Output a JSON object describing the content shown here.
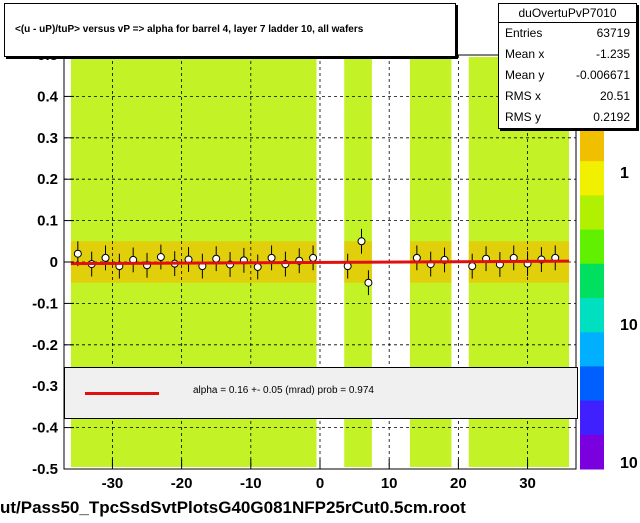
{
  "title": "<(u - uP)/tuP> versus   vP => alpha for barrel 4, layer 7 ladder 10, all wafers",
  "stats": {
    "name": "duOvertuPvP7010",
    "rows": [
      {
        "label": "Entries",
        "value": "63719"
      },
      {
        "label": "Mean x",
        "value": "-1.235"
      },
      {
        "label": "Mean y",
        "value": "-0.006671"
      },
      {
        "label": "RMS x",
        "value": "20.51"
      },
      {
        "label": "RMS y",
        "value": "0.2192"
      }
    ]
  },
  "fit": {
    "text": "alpha =    0.16 +-  0.05 (mrad) prob = 0.974",
    "color": "#e01010"
  },
  "filename": "ut/Pass50_TpcSsdSvtPlotsG40G081NFP25rCut0.5cm.root",
  "colorbar": {
    "labels": [
      "1",
      "10",
      "10"
    ],
    "colors": [
      "#7a00e0",
      "#4020ff",
      "#0060ff",
      "#00b0ff",
      "#00e0c0",
      "#00e060",
      "#60f000",
      "#b0f000",
      "#f0f000",
      "#f0c000"
    ]
  },
  "chart_data": {
    "type": "scatter",
    "xlim": [
      -37,
      37
    ],
    "ylim": [
      -0.5,
      0.5
    ],
    "x_ticks": [
      -30,
      -20,
      -10,
      0,
      10,
      20,
      30
    ],
    "y_ticks": [
      -0.5,
      -0.4,
      -0.3,
      -0.2,
      -0.1,
      0,
      0.1,
      0.2,
      0.3,
      0.4,
      0.5
    ],
    "y_tick_labels": [
      "-0.5",
      "-0.4",
      "-0.3",
      "-0.2",
      "-0.1",
      "0",
      "0.1",
      "0.2",
      "0.3",
      "0.4",
      "0.5"
    ],
    "grid": true,
    "occupied_x_bands": [
      [
        -36,
        -0.5
      ],
      [
        3.5,
        7.5
      ],
      [
        13,
        19
      ],
      [
        21.5,
        36
      ]
    ],
    "profile_points": [
      {
        "x": -35,
        "y": 0.02
      },
      {
        "x": -33,
        "y": -0.005
      },
      {
        "x": -31,
        "y": 0.01
      },
      {
        "x": -29,
        "y": -0.01
      },
      {
        "x": -27,
        "y": 0.005
      },
      {
        "x": -25,
        "y": -0.008
      },
      {
        "x": -23,
        "y": 0.012
      },
      {
        "x": -21,
        "y": -0.004
      },
      {
        "x": -19,
        "y": 0.006
      },
      {
        "x": -17,
        "y": -0.01
      },
      {
        "x": -15,
        "y": 0.008
      },
      {
        "x": -13,
        "y": -0.006
      },
      {
        "x": -11,
        "y": 0.004
      },
      {
        "x": -9,
        "y": -0.012
      },
      {
        "x": -7,
        "y": 0.01
      },
      {
        "x": -5,
        "y": -0.005
      },
      {
        "x": -3,
        "y": 0.003
      },
      {
        "x": -1,
        "y": 0.01
      },
      {
        "x": 4,
        "y": -0.01
      },
      {
        "x": 6,
        "y": 0.05
      },
      {
        "x": 7,
        "y": -0.05
      },
      {
        "x": 14,
        "y": 0.01
      },
      {
        "x": 16,
        "y": -0.005
      },
      {
        "x": 18,
        "y": 0.005
      },
      {
        "x": 22,
        "y": -0.01
      },
      {
        "x": 24,
        "y": 0.008
      },
      {
        "x": 26,
        "y": -0.006
      },
      {
        "x": 28,
        "y": 0.01
      },
      {
        "x": 30,
        "y": -0.004
      },
      {
        "x": 32,
        "y": 0.006
      },
      {
        "x": 34,
        "y": 0.01
      }
    ],
    "fit_line": {
      "x": [
        -36,
        36
      ],
      "y": [
        -0.004,
        0.002
      ]
    }
  }
}
